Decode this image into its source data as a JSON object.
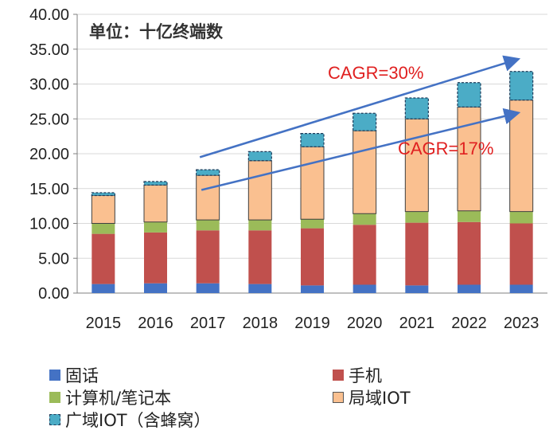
{
  "chart_data": {
    "type": "bar",
    "stacked": true,
    "unit_note": "单位：十亿终端数",
    "categories": [
      "2015",
      "2016",
      "2017",
      "2018",
      "2019",
      "2020",
      "2021",
      "2022",
      "2023"
    ],
    "ylim": [
      0,
      40
    ],
    "yticks": [
      "0.00",
      "5.00",
      "10.00",
      "15.00",
      "20.00",
      "25.00",
      "30.00",
      "35.00",
      "40.00"
    ],
    "grid": true,
    "legend_position": "bottom",
    "series": [
      {
        "name": "固话",
        "color": "#4472C4",
        "values": [
          1.3,
          1.4,
          1.4,
          1.3,
          1.1,
          1.2,
          1.1,
          1.2,
          1.2
        ]
      },
      {
        "name": "手机",
        "color": "#C0504D",
        "values": [
          7.2,
          7.3,
          7.6,
          7.7,
          8.2,
          8.6,
          9.0,
          9.0,
          8.8
        ]
      },
      {
        "name": "计算机/笔记本",
        "color": "#9BBB59",
        "values": [
          1.5,
          1.5,
          1.5,
          1.5,
          1.3,
          1.6,
          1.6,
          1.6,
          1.7
        ]
      },
      {
        "name": "局域IOT",
        "color": "#FAC090",
        "values": [
          4.0,
          5.3,
          6.4,
          8.5,
          10.4,
          11.9,
          13.3,
          14.9,
          16.0
        ]
      },
      {
        "name": "广域IOT（含蜂窝）",
        "color": "#4BACC6",
        "dashed": true,
        "values": [
          0.4,
          0.5,
          0.8,
          1.3,
          1.9,
          2.5,
          3.0,
          3.5,
          4.1
        ]
      }
    ],
    "annotations": [
      {
        "text": "CAGR=30%",
        "color": "#E02020"
      },
      {
        "text": "CAGR=17%",
        "color": "#E02020"
      }
    ]
  }
}
